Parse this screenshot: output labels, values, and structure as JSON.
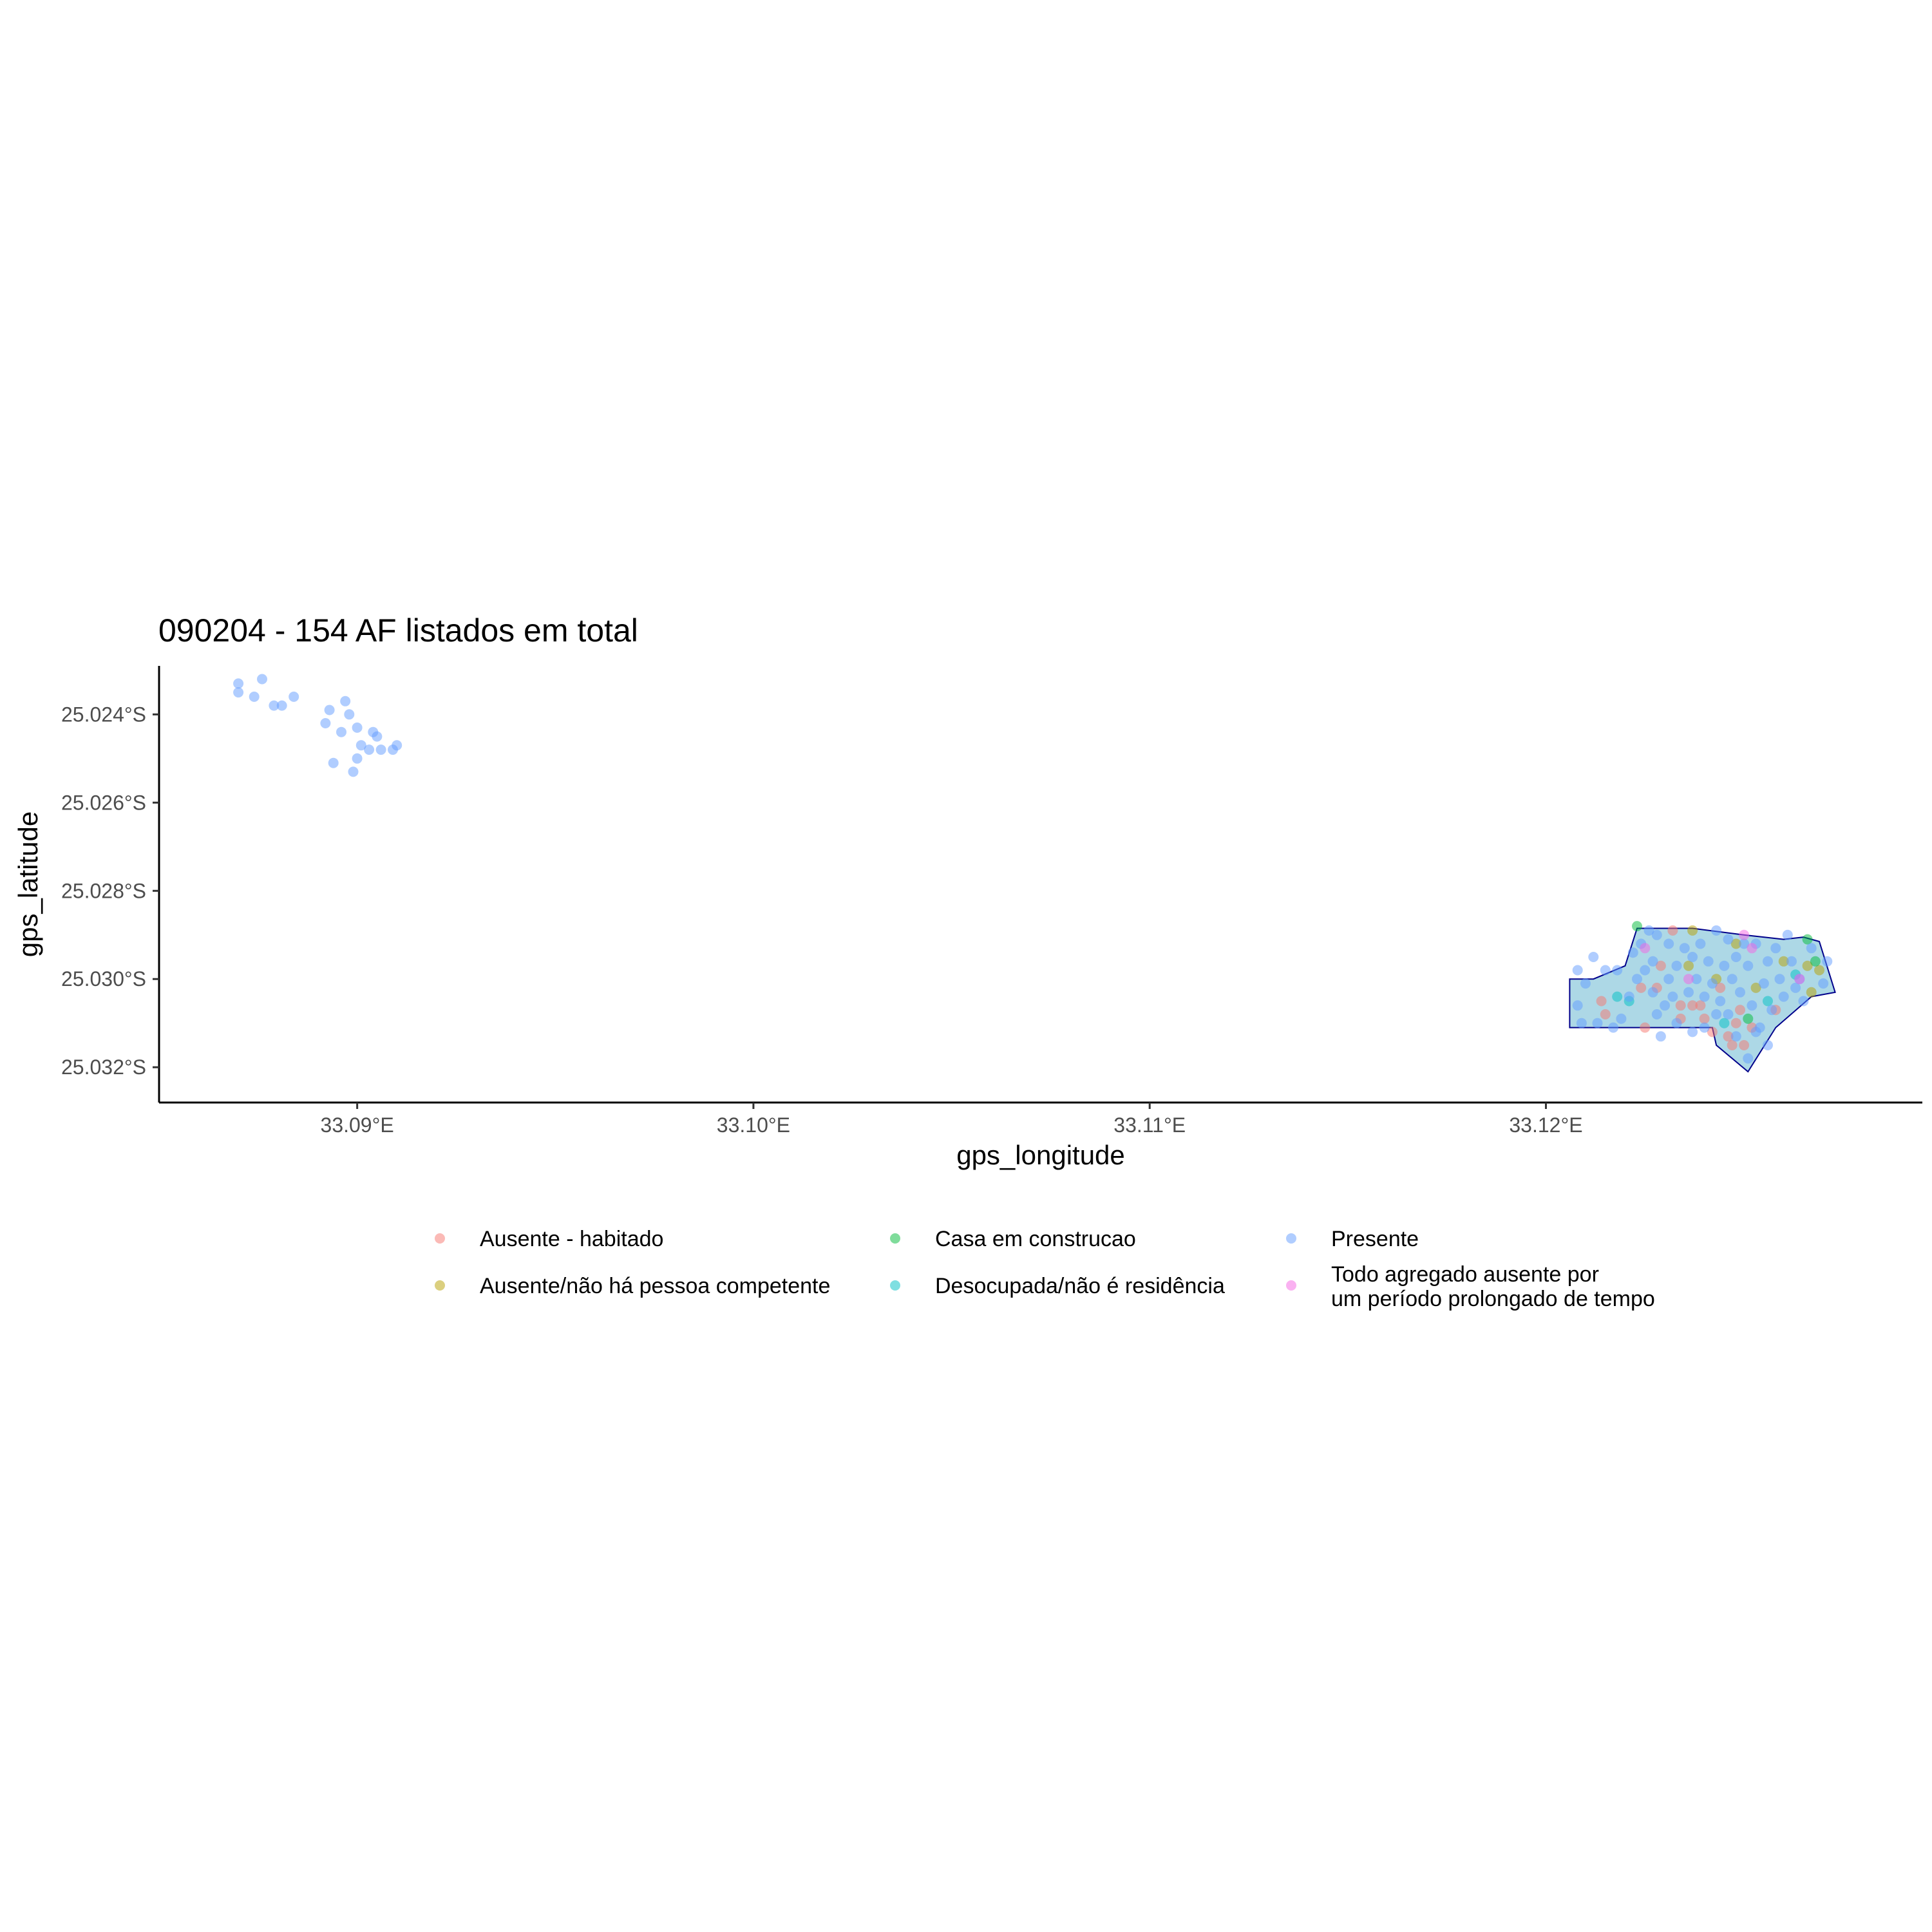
{
  "chart_data": {
    "type": "scatter",
    "title": "090204 - 154 AF listados em total",
    "xlabel": "gps_longitude",
    "ylabel": "gps_latitude",
    "xlim": [
      33.085,
      33.1295
    ],
    "ylim": [
      -25.0328,
      -25.0229
    ],
    "x_ticks": [
      {
        "value": 33.09,
        "label": "33.09°E"
      },
      {
        "value": 33.1,
        "label": "33.10°E"
      },
      {
        "value": 33.11,
        "label": "33.11°E"
      },
      {
        "value": 33.12,
        "label": "33.12°E"
      }
    ],
    "y_ticks": [
      {
        "value": -25.024,
        "label": "25.024°S"
      },
      {
        "value": -25.026,
        "label": "25.026°S"
      },
      {
        "value": -25.028,
        "label": "25.028°S"
      },
      {
        "value": -25.03,
        "label": "25.030°S"
      },
      {
        "value": -25.032,
        "label": "25.032°S"
      }
    ],
    "grid": false,
    "legend_position": "bottom",
    "boundary_polygon": {
      "fill": "#add8e6",
      "stroke": "#00008b",
      "points": [
        [
          33.1206,
          -25.03
        ],
        [
          33.1212,
          -25.03
        ],
        [
          33.122,
          -25.0297
        ],
        [
          33.1223,
          -25.02885
        ],
        [
          33.1237,
          -25.02885
        ],
        [
          33.125,
          -25.029
        ],
        [
          33.126,
          -25.0291
        ],
        [
          33.1265,
          -25.02905
        ],
        [
          33.1269,
          -25.02915
        ],
        [
          33.1273,
          -25.0303
        ],
        [
          33.1267,
          -25.0304
        ],
        [
          33.1258,
          -25.0311
        ],
        [
          33.1251,
          -25.0321
        ],
        [
          33.1243,
          -25.0315
        ],
        [
          33.1242,
          -25.0311
        ],
        [
          33.122,
          -25.0311
        ],
        [
          33.1206,
          -25.0311
        ]
      ]
    },
    "series": [
      {
        "name": "Ausente - habitado",
        "color": "#f8766d",
        "points": [
          [
            33.1215,
            -25.0308
          ],
          [
            33.1214,
            -25.0305
          ],
          [
            33.1224,
            -25.0302
          ],
          [
            33.1225,
            -25.0311
          ],
          [
            33.1228,
            -25.0302
          ],
          [
            33.1229,
            -25.0297
          ],
          [
            33.1232,
            -25.0289
          ],
          [
            33.1234,
            -25.0309
          ],
          [
            33.1234,
            -25.0306
          ],
          [
            33.1237,
            -25.0306
          ],
          [
            33.1239,
            -25.0306
          ],
          [
            33.124,
            -25.0309
          ],
          [
            33.1242,
            -25.0312
          ],
          [
            33.1244,
            -25.0302
          ],
          [
            33.1246,
            -25.0313
          ],
          [
            33.1247,
            -25.0315
          ],
          [
            33.1248,
            -25.031
          ],
          [
            33.125,
            -25.0315
          ],
          [
            33.1252,
            -25.0311
          ],
          [
            33.1249,
            -25.0307
          ],
          [
            33.1258,
            -25.0307
          ]
        ]
      },
      {
        "name": "Ausente/não há pessoa competente",
        "color": "#b79f00",
        "points": [
          [
            33.1236,
            -25.0297
          ],
          [
            33.1243,
            -25.03
          ],
          [
            33.1248,
            -25.0292
          ],
          [
            33.1253,
            -25.0302
          ],
          [
            33.126,
            -25.0296
          ],
          [
            33.1266,
            -25.0297
          ],
          [
            33.1267,
            -25.0303
          ],
          [
            33.1269,
            -25.0298
          ],
          [
            33.1237,
            -25.0289
          ]
        ]
      },
      {
        "name": "Casa em construcao",
        "color": "#00ba38",
        "points": [
          [
            33.1223,
            -25.0288
          ],
          [
            33.1266,
            -25.0291
          ],
          [
            33.1251,
            -25.0309
          ],
          [
            33.1268,
            -25.0296
          ]
        ]
      },
      {
        "name": "Desocupada/não é residência",
        "color": "#00bfc4",
        "points": [
          [
            33.1218,
            -25.0304
          ],
          [
            33.1221,
            -25.0305
          ],
          [
            33.1245,
            -25.031
          ],
          [
            33.1256,
            -25.0305
          ],
          [
            33.1263,
            -25.0299
          ]
        ]
      },
      {
        "name": "Presente",
        "color": "#619cff",
        "points": [
          [
            33.087,
            -25.0233
          ],
          [
            33.087,
            -25.0235
          ],
          [
            33.0874,
            -25.0236
          ],
          [
            33.0876,
            -25.0232
          ],
          [
            33.0879,
            -25.0238
          ],
          [
            33.0881,
            -25.0238
          ],
          [
            33.0884,
            -25.0236
          ],
          [
            33.0893,
            -25.0239
          ],
          [
            33.0898,
            -25.024
          ],
          [
            33.0892,
            -25.0242
          ],
          [
            33.0897,
            -25.0237
          ],
          [
            33.09,
            -25.0243
          ],
          [
            33.0896,
            -25.0244
          ],
          [
            33.0904,
            -25.0244
          ],
          [
            33.0905,
            -25.0245
          ],
          [
            33.0901,
            -25.0247
          ],
          [
            33.0903,
            -25.0248
          ],
          [
            33.0906,
            -25.0248
          ],
          [
            33.0909,
            -25.0248
          ],
          [
            33.091,
            -25.0247
          ],
          [
            33.0894,
            -25.0251
          ],
          [
            33.09,
            -25.025
          ],
          [
            33.0899,
            -25.0253
          ],
          [
            33.1208,
            -25.0298
          ],
          [
            33.1215,
            -25.0298
          ],
          [
            33.1208,
            -25.0306
          ],
          [
            33.1209,
            -25.031
          ],
          [
            33.121,
            -25.0301
          ],
          [
            33.1213,
            -25.031
          ],
          [
            33.1218,
            -25.0298
          ],
          [
            33.1219,
            -25.0309
          ],
          [
            33.1221,
            -25.0304
          ],
          [
            33.1223,
            -25.03
          ],
          [
            33.1222,
            -25.0294
          ],
          [
            33.1224,
            -25.0292
          ],
          [
            33.1226,
            -25.0289
          ],
          [
            33.1227,
            -25.0296
          ],
          [
            33.1228,
            -25.029
          ],
          [
            33.1228,
            -25.0308
          ],
          [
            33.123,
            -25.0306
          ],
          [
            33.1231,
            -25.03
          ],
          [
            33.1232,
            -25.0304
          ],
          [
            33.1233,
            -25.031
          ],
          [
            33.1235,
            -25.0293
          ],
          [
            33.1236,
            -25.0303
          ],
          [
            33.1237,
            -25.0295
          ],
          [
            33.1238,
            -25.03
          ],
          [
            33.1239,
            -25.0292
          ],
          [
            33.124,
            -25.0311
          ],
          [
            33.1241,
            -25.0296
          ],
          [
            33.1242,
            -25.0301
          ],
          [
            33.1243,
            -25.0289
          ],
          [
            33.1244,
            -25.0305
          ],
          [
            33.1245,
            -25.0297
          ],
          [
            33.1246,
            -25.0291
          ],
          [
            33.1246,
            -25.0308
          ],
          [
            33.1247,
            -25.03
          ],
          [
            33.1248,
            -25.0295
          ],
          [
            33.1249,
            -25.0303
          ],
          [
            33.125,
            -25.0292
          ],
          [
            33.1251,
            -25.0297
          ],
          [
            33.1252,
            -25.0306
          ],
          [
            33.1253,
            -25.0292
          ],
          [
            33.1254,
            -25.0311
          ],
          [
            33.1255,
            -25.0301
          ],
          [
            33.1256,
            -25.0296
          ],
          [
            33.1257,
            -25.0307
          ],
          [
            33.1258,
            -25.0293
          ],
          [
            33.1259,
            -25.03
          ],
          [
            33.126,
            -25.0304
          ],
          [
            33.1261,
            -25.029
          ],
          [
            33.1262,
            -25.0296
          ],
          [
            33.1264,
            -25.03
          ],
          [
            33.1265,
            -25.0305
          ],
          [
            33.1267,
            -25.0293
          ],
          [
            33.127,
            -25.0301
          ],
          [
            33.1271,
            -25.0296
          ],
          [
            33.1225,
            -25.0298
          ],
          [
            33.1227,
            -25.0303
          ],
          [
            33.1233,
            -25.0297
          ],
          [
            33.124,
            -25.0304
          ],
          [
            33.1243,
            -25.0308
          ],
          [
            33.1248,
            -25.0313
          ],
          [
            33.1251,
            -25.0318
          ],
          [
            33.1253,
            -25.0312
          ],
          [
            33.1256,
            -25.0315
          ],
          [
            33.1217,
            -25.0311
          ],
          [
            33.1229,
            -25.0313
          ],
          [
            33.1237,
            -25.0312
          ],
          [
            33.1212,
            -25.0295
          ],
          [
            33.1231,
            -25.0292
          ],
          [
            33.1263,
            -25.0302
          ]
        ]
      },
      {
        "name": "Todo agregado ausente por\num período prolongado de tempo",
        "color": "#f564e3",
        "points": [
          [
            33.1225,
            -25.0293
          ],
          [
            33.1236,
            -25.03
          ],
          [
            33.125,
            -25.029
          ],
          [
            33.1252,
            -25.0293
          ],
          [
            33.1264,
            -25.03
          ]
        ]
      }
    ]
  }
}
